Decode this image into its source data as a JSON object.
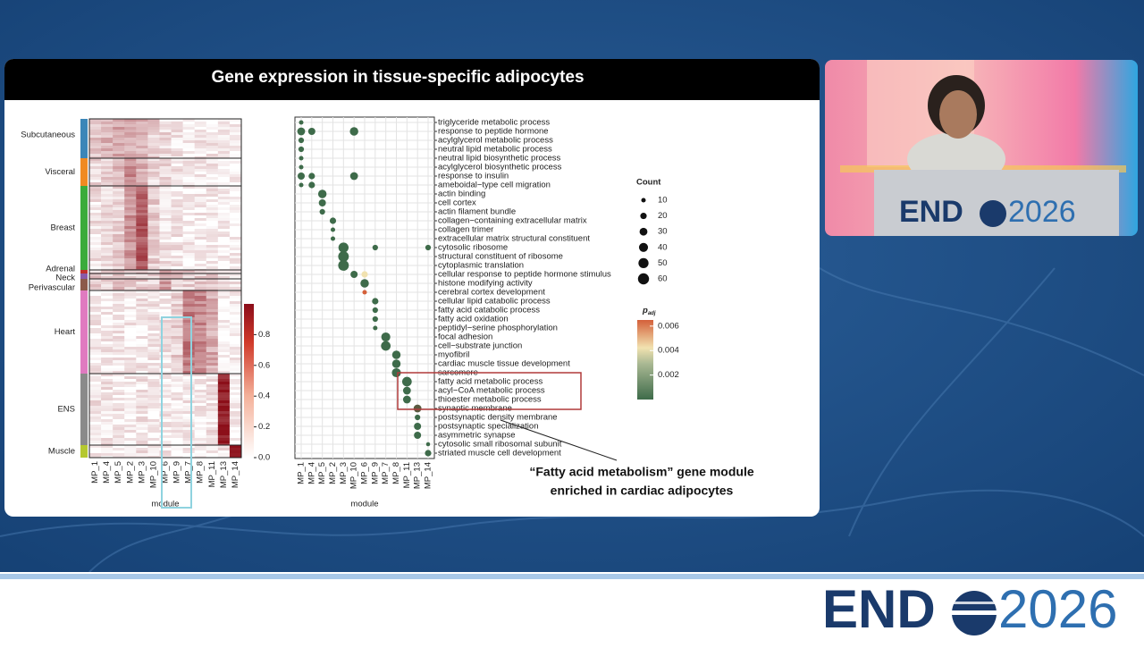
{
  "slide": {
    "title": "Gene expression in tissue-specific adipocytes",
    "heatmap": {
      "groups": [
        {
          "label": "Subcutaneous"
        },
        {
          "label": "Visceral"
        },
        {
          "label": "Breast"
        },
        {
          "label": "Adrenal"
        },
        {
          "label": "Neck"
        },
        {
          "label": "Perivascular"
        },
        {
          "label": "Heart"
        },
        {
          "label": "ENS"
        },
        {
          "label": "Muscle"
        }
      ],
      "modules": [
        "MP_1",
        "MP_4",
        "MP_5",
        "MP_2",
        "MP_3",
        "MP_10",
        "MP_6",
        "MP_9",
        "MP_7",
        "MP_8",
        "MP_11",
        "MP_13",
        "MP_14"
      ],
      "xlabel": "module",
      "colorbar": {
        "lim": [
          0,
          1
        ],
        "ticks": [
          {
            "value": 0,
            "label": "0.0"
          },
          0.2,
          0.4,
          0.6,
          0.8
        ]
      }
    },
    "dotplot": {
      "modules": [
        "MP_1",
        "MP_4",
        "MP_5",
        "MP_2",
        "MP_3",
        "MP_10",
        "MP_6",
        "MP_9",
        "MP_7",
        "MP_8",
        "MP_11",
        "MP_13",
        "MP_14"
      ],
      "xlabel": "module",
      "terms": [
        "triglyceride metabolic process",
        "response to peptide hormone",
        "acylglycerol metabolic process",
        "neutral lipid metabolic process",
        "neutral lipid biosynthetic process",
        "acylglycerol biosynthetic process",
        "response to insulin",
        "ameboidal−type cell migration",
        "actin binding",
        "cell cortex",
        "actin filament bundle",
        "collagen−containing extracellular matrix",
        "collagen trimer",
        "extracellular matrix structural constituent",
        "cytosolic ribosome",
        "structural constituent of ribosome",
        "cytoplasmic translation",
        "cellular response to peptide hormone stimulus",
        "histone modifying activity",
        "cerebral cortex development",
        "cellular lipid catabolic process",
        "fatty acid catabolic process",
        "fatty acid oxidation",
        "peptidyl−serine phosphorylation",
        "focal adhesion",
        "cell−substrate junction",
        "myofibril",
        "cardiac muscle tissue development",
        "sarcomere",
        "fatty acid metabolic process",
        "acyl−CoA metabolic process",
        "thioester metabolic process",
        "synaptic membrane",
        "postsynaptic density membrane",
        "postsynaptic specialization",
        "asymmetric synapse",
        "cytosolic small ribosomal subunit",
        "striated muscle cell development"
      ],
      "dot_color": "#3e6b4a",
      "dots": [
        {
          "term": "triglyceride metabolic process",
          "module": "MP_1",
          "count": 10
        },
        {
          "term": "response to peptide hormone",
          "module": "MP_1",
          "count": 30
        },
        {
          "term": "response to peptide hormone",
          "module": "MP_4",
          "count": 25
        },
        {
          "term": "response to peptide hormone",
          "module": "MP_10",
          "count": 35
        },
        {
          "term": "acylglycerol metabolic process",
          "module": "MP_1",
          "count": 15
        },
        {
          "term": "neutral lipid metabolic process",
          "module": "MP_1",
          "count": 15
        },
        {
          "term": "neutral lipid biosynthetic process",
          "module": "MP_1",
          "count": 10
        },
        {
          "term": "acylglycerol biosynthetic process",
          "module": "MP_1",
          "count": 10
        },
        {
          "term": "response to insulin",
          "module": "MP_1",
          "count": 25
        },
        {
          "term": "response to insulin",
          "module": "MP_4",
          "count": 20
        },
        {
          "term": "response to insulin",
          "module": "MP_10",
          "count": 30
        },
        {
          "term": "ameboidal−type cell migration",
          "module": "MP_1",
          "count": 10
        },
        {
          "term": "ameboidal−type cell migration",
          "module": "MP_4",
          "count": 20
        },
        {
          "term": "actin binding",
          "module": "MP_5",
          "count": 35
        },
        {
          "term": "cell cortex",
          "module": "MP_5",
          "count": 25
        },
        {
          "term": "actin filament bundle",
          "module": "MP_5",
          "count": 15
        },
        {
          "term": "collagen−containing extracellular matrix",
          "module": "MP_2",
          "count": 20
        },
        {
          "term": "collagen trimer",
          "module": "MP_2",
          "count": 10
        },
        {
          "term": "extracellular matrix structural constituent",
          "module": "MP_2",
          "count": 10
        },
        {
          "term": "cytosolic ribosome",
          "module": "MP_3",
          "count": 50
        },
        {
          "term": "cytosolic ribosome",
          "module": "MP_9",
          "count": 15
        },
        {
          "term": "cytosolic ribosome",
          "module": "MP_14",
          "count": 15
        },
        {
          "term": "structural constituent of ribosome",
          "module": "MP_3",
          "count": 55
        },
        {
          "term": "cytoplasmic translation",
          "module": "MP_3",
          "count": 55
        },
        {
          "term": "cellular response to peptide hormone stimulus",
          "module": "MP_10",
          "count": 25
        },
        {
          "term": "cellular response to peptide hormone stimulus",
          "module": "MP_6",
          "count": 20,
          "color": "#f1e2b0"
        },
        {
          "term": "histone modifying activity",
          "module": "MP_6",
          "count": 35
        },
        {
          "term": "cerebral cortex development",
          "module": "MP_6",
          "count": 10,
          "color": "#d4603a"
        },
        {
          "term": "cellular lipid catabolic process",
          "module": "MP_9",
          "count": 20
        },
        {
          "term": "fatty acid catabolic process",
          "module": "MP_9",
          "count": 15
        },
        {
          "term": "fatty acid oxidation",
          "module": "MP_9",
          "count": 15
        },
        {
          "term": "peptidyl−serine phosphorylation",
          "module": "MP_9",
          "count": 10
        },
        {
          "term": "focal adhesion",
          "module": "MP_7",
          "count": 40
        },
        {
          "term": "cell−substrate junction",
          "module": "MP_7",
          "count": 45
        },
        {
          "term": "myofibril",
          "module": "MP_8",
          "count": 35
        },
        {
          "term": "cardiac muscle tissue development",
          "module": "MP_8",
          "count": 35
        },
        {
          "term": "sarcomere",
          "module": "MP_8",
          "count": 40
        },
        {
          "term": "fatty acid metabolic process",
          "module": "MP_11",
          "count": 45
        },
        {
          "term": "acyl−CoA metabolic process",
          "module": "MP_11",
          "count": 30
        },
        {
          "term": "thioester metabolic process",
          "module": "MP_11",
          "count": 30
        },
        {
          "term": "synaptic membrane",
          "module": "MP_13",
          "count": 30,
          "color": "#5a5a40"
        },
        {
          "term": "postsynaptic density membrane",
          "module": "MP_13",
          "count": 15
        },
        {
          "term": "postsynaptic specialization",
          "module": "MP_13",
          "count": 25
        },
        {
          "term": "asymmetric synapse",
          "module": "MP_13",
          "count": 25
        },
        {
          "term": "cytosolic small ribosomal subunit",
          "module": "MP_14",
          "count": 8
        },
        {
          "term": "striated muscle cell development",
          "module": "MP_14",
          "count": 20
        }
      ],
      "count_legend": {
        "title": "Count",
        "ticks": [
          10,
          20,
          30,
          40,
          50,
          60
        ]
      },
      "padj_legend": {
        "title": "p",
        "title_sub": "adj",
        "lim": [
          0,
          0.0065
        ],
        "ticks": [
          0.002,
          0.004,
          0.006
        ]
      }
    },
    "annotation": [
      "“Fatty acid metabolism” gene module",
      "enriched in cardiac adipocytes"
    ]
  },
  "video": {
    "logo": {
      "bold": "END",
      "light": "2026"
    }
  },
  "footer": {
    "logo": {
      "bold": "END",
      "light": "2026"
    }
  }
}
